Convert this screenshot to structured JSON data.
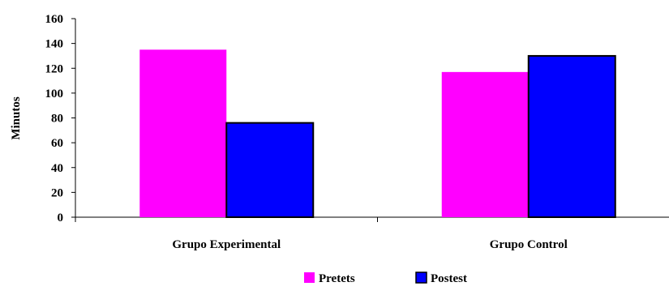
{
  "chart_data": {
    "type": "bar",
    "categories": [
      "Grupo Experimental",
      "Grupo Control"
    ],
    "series": [
      {
        "name": "Pretets",
        "values": [
          135,
          117
        ],
        "color": "#ff00ff"
      },
      {
        "name": "Postest",
        "values": [
          76,
          130
        ],
        "color": "#0000ff"
      }
    ],
    "title": "",
    "xlabel": "",
    "ylabel": "Minutos",
    "ylim": [
      0,
      160
    ],
    "yticks": [
      0,
      20,
      40,
      60,
      80,
      100,
      120,
      140,
      160
    ],
    "grid": false,
    "legend_position": "bottom"
  }
}
